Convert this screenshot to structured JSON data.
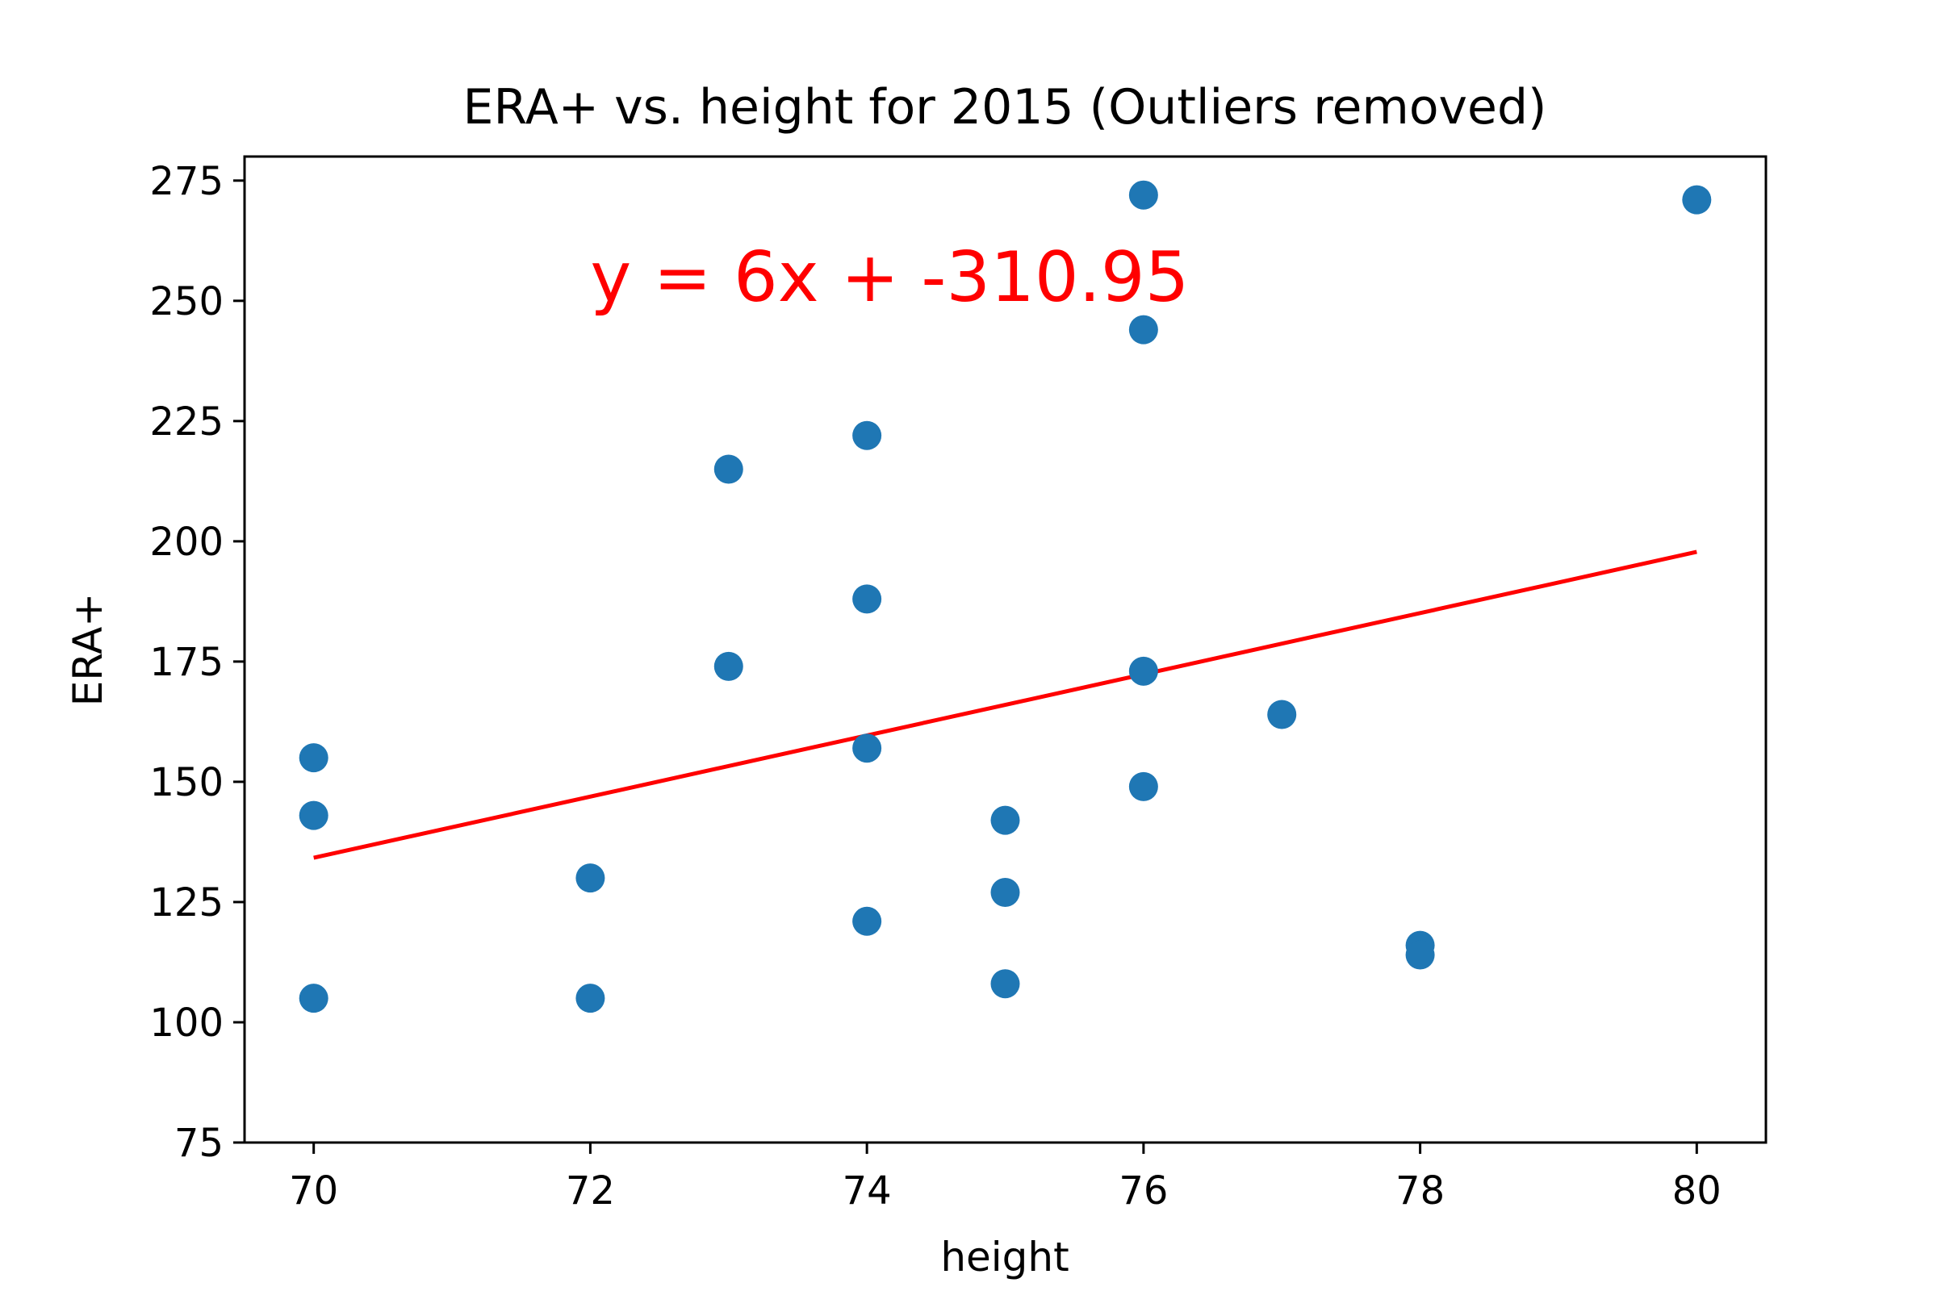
{
  "chart_data": {
    "type": "scatter",
    "title": "ERA+ vs. height for 2015 (Outliers removed)",
    "xlabel": "height",
    "ylabel": "ERA+",
    "xlim": [
      69.5,
      80.5
    ],
    "ylim": [
      75,
      280
    ],
    "xticks": [
      70,
      72,
      74,
      76,
      78,
      80
    ],
    "yticks": [
      75,
      100,
      125,
      150,
      175,
      200,
      225,
      250,
      275
    ],
    "grid": false,
    "legend": "none",
    "series": [
      {
        "color": "#1f77b4",
        "points": [
          {
            "x": 70,
            "y": 155
          },
          {
            "x": 70,
            "y": 143
          },
          {
            "x": 70,
            "y": 105
          },
          {
            "x": 72,
            "y": 130
          },
          {
            "x": 72,
            "y": 105
          },
          {
            "x": 73,
            "y": 215
          },
          {
            "x": 73,
            "y": 174
          },
          {
            "x": 74,
            "y": 222
          },
          {
            "x": 74,
            "y": 188
          },
          {
            "x": 74,
            "y": 157
          },
          {
            "x": 74,
            "y": 121
          },
          {
            "x": 75,
            "y": 142
          },
          {
            "x": 75,
            "y": 127
          },
          {
            "x": 75,
            "y": 108
          },
          {
            "x": 76,
            "y": 272
          },
          {
            "x": 76,
            "y": 244
          },
          {
            "x": 76,
            "y": 173
          },
          {
            "x": 76,
            "y": 149
          },
          {
            "x": 77,
            "y": 164
          },
          {
            "x": 78,
            "y": 116
          },
          {
            "x": 78,
            "y": 114
          },
          {
            "x": 80,
            "y": 271
          }
        ]
      }
    ],
    "fit_line": {
      "color": "#ff0000",
      "x": [
        70,
        80
      ],
      "y": [
        134.2,
        197.8
      ]
    },
    "annotation": {
      "text": "y = 6x + -310.95",
      "color": "#ff0000",
      "x": 72.0,
      "y": 250
    }
  }
}
